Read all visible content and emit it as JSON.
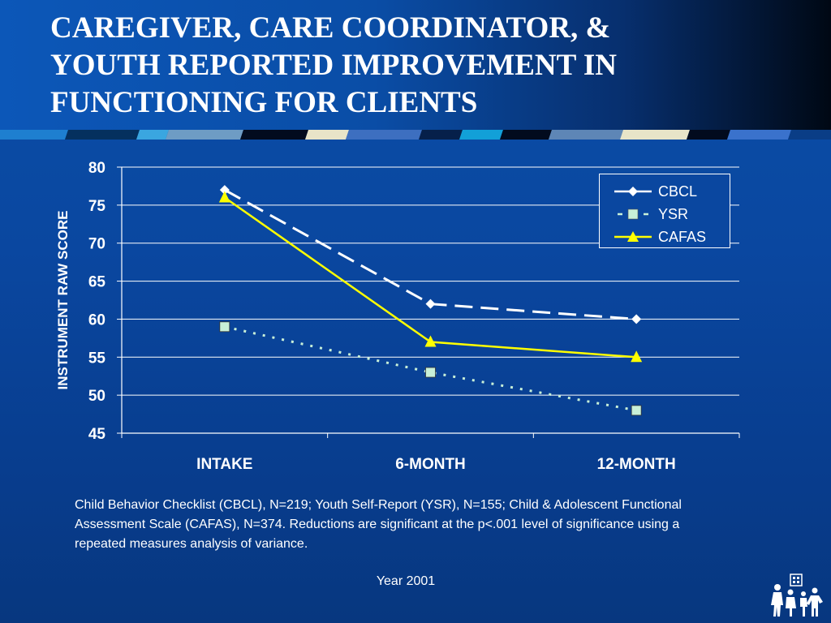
{
  "slide": {
    "title": "CAREGIVER, CARE COORDINATOR, &\nYOUTH REPORTED IMPROVEMENT IN\nFUNCTIONING FOR CLIENTS",
    "footnote": "Child Behavior Checklist (CBCL), N=219; Youth Self-Report (YSR), N=155; Child & Adolescent Functional Assessment Scale (CAFAS), N=374.  Reductions are significant at the p<.001 level of significance using a repeated measures analysis of variance.",
    "year": "Year 2001",
    "logo_icon": "family-figures-logo-icon"
  },
  "colors": {
    "background": "#0a47a0",
    "cbcl": "#ffffff",
    "ysr": "#c8f0d8",
    "cafas": "#ffff00",
    "gridline": "#ffffff",
    "text": "#ffffff"
  },
  "chart_data": {
    "type": "line",
    "title": "",
    "xlabel": "",
    "ylabel": "INSTRUMENT RAW SCORE",
    "categories": [
      "INTAKE",
      "6-MONTH",
      "12-MONTH"
    ],
    "ylim": [
      45,
      80
    ],
    "yticks": [
      45,
      50,
      55,
      60,
      65,
      70,
      75,
      80
    ],
    "grid": true,
    "legend_position": "top-right",
    "series": [
      {
        "name": "CBCL",
        "values": [
          77,
          62,
          60
        ],
        "marker": "diamond",
        "line_style": "dashed",
        "color": "#ffffff"
      },
      {
        "name": "YSR",
        "values": [
          59,
          53,
          48
        ],
        "marker": "square",
        "line_style": "dotted",
        "color": "#c8f0d8"
      },
      {
        "name": "CAFAS",
        "values": [
          76,
          57,
          55
        ],
        "marker": "triangle",
        "line_style": "solid",
        "color": "#ffff00"
      }
    ]
  }
}
